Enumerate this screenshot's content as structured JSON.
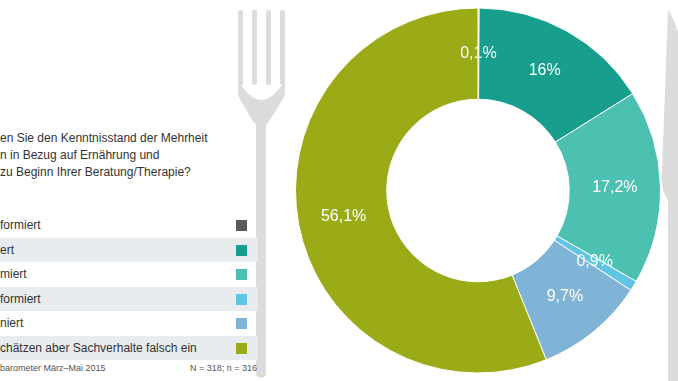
{
  "chart_data": {
    "type": "doughnut",
    "title": [
      "en Sie den Kenntnisstand der Mehrheit",
      "n in Bezug auf Ernährung und",
      "zu Beginn Ihrer Beratung/Therapie?"
    ],
    "categories": [
      "formiert",
      "ert",
      "miert",
      "formiert",
      "niert",
      "chätzen aber Sachverhalte falsch ein"
    ],
    "values": [
      0.1,
      16,
      17.2,
      0.9,
      9.7,
      56.1
    ],
    "value_labels": [
      "0,1%",
      "16%",
      "17,2%",
      "0,9%",
      "9,7%",
      "56,1%"
    ],
    "colors": [
      "#5a5a5a",
      "#179e8d",
      "#4cc0b1",
      "#5ec6e2",
      "#7fb4d6",
      "#9aab17"
    ],
    "data_labels": true,
    "legend": "left",
    "source": "barometer März–Mai 2015",
    "note": "N = 318; n = 316"
  }
}
